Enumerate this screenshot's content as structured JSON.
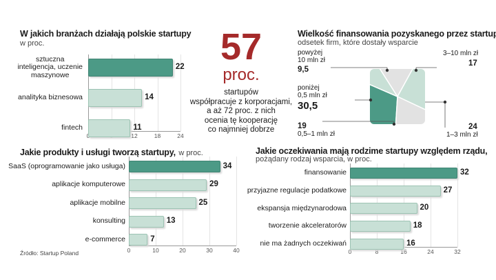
{
  "colors": {
    "highlight": "#4c9a86",
    "light": "#c8e0d6",
    "accent_red": "#a52a2a",
    "gray": "#e2e2e2"
  },
  "center": {
    "big_number": "57",
    "unit": "proc.",
    "text_lines": [
      "startupów",
      "współpracuje z korporacjami,",
      "a aż 72 proc. z nich",
      "ocenia tę kooperację",
      "co najmniej dobrze"
    ]
  },
  "source": "Źródło: Startup Poland",
  "chart_data": [
    {
      "id": "industries",
      "type": "bar",
      "orientation": "horizontal",
      "title": "W jakich branżach działają polskie startupy",
      "subtitle": "w proc.",
      "categories": [
        [
          "sztuczna",
          "inteligencja, uczenie",
          "maszynowe"
        ],
        [
          "analityka biznesowa"
        ],
        [
          "fintech"
        ]
      ],
      "values": [
        22,
        14,
        11
      ],
      "value_labels": [
        "22",
        "14",
        "11"
      ],
      "xlim": [
        0,
        24
      ],
      "ticks": [
        "0",
        "6",
        "12",
        "18",
        "24"
      ],
      "highlight_index": 0
    },
    {
      "id": "products",
      "type": "bar",
      "orientation": "horizontal",
      "title": "Jakie produkty i usługi tworzą startupy,",
      "subtitle": "w proc.",
      "categories": [
        [
          "SaaS (oprogramowanie jako usługa)"
        ],
        [
          "aplikacje komputerowe"
        ],
        [
          "aplikacje mobilne"
        ],
        [
          "konsulting"
        ],
        [
          "e-commerce"
        ]
      ],
      "values": [
        34,
        29,
        25,
        13,
        7
      ],
      "value_labels": [
        "34",
        "29",
        "25",
        "13",
        "7"
      ],
      "xlim": [
        0,
        40
      ],
      "ticks": [
        "0",
        "10",
        "20",
        "30",
        "40"
      ],
      "highlight_index": 0
    },
    {
      "id": "funding",
      "type": "pie",
      "title": "Wielkość finansowania pozyskanego przez startup",
      "subtitle": "odsetek firm, które dostały wsparcie",
      "slices": [
        {
          "label_lines": [
            "poniżej",
            "0,5 mln zł"
          ],
          "value": 30.5,
          "value_label": "30,5",
          "color": "#4c9a86"
        },
        {
          "label_lines": [
            "powyżej",
            "10 mln zł"
          ],
          "value": 9.5,
          "value_label": "9,5",
          "color": "#c8e0d6"
        },
        {
          "label_lines": [
            "3–10 mln zł"
          ],
          "value": 17,
          "value_label": "17",
          "color": "#e2e2e2"
        },
        {
          "label_lines": [
            "1–3 mln zł"
          ],
          "value": 24,
          "value_label": "24",
          "color": "#c8e0d6"
        },
        {
          "label_lines": [
            "0,5–1 mln zł"
          ],
          "value": 19,
          "value_label": "19",
          "color": "#e2e2e2"
        }
      ]
    },
    {
      "id": "expectations",
      "type": "bar",
      "orientation": "horizontal",
      "title": "Jakie oczekiwania mają rodzime startupy względem rządu,",
      "subtitle": "pożądany rodzaj wsparcia, w proc.",
      "categories": [
        [
          "finansowanie"
        ],
        [
          "przyjazne regulacje podatkowe"
        ],
        [
          "ekspansja międzynarodowa"
        ],
        [
          "tworzenie akceleratorów"
        ],
        [
          "nie ma żadnych oczekiwań"
        ]
      ],
      "values": [
        32,
        27,
        20,
        18,
        16
      ],
      "value_labels": [
        "32",
        "27",
        "20",
        "18",
        "16"
      ],
      "xlim": [
        0,
        32
      ],
      "ticks": [
        "0",
        "8",
        "16",
        "24",
        "32"
      ],
      "highlight_index": 0
    }
  ]
}
